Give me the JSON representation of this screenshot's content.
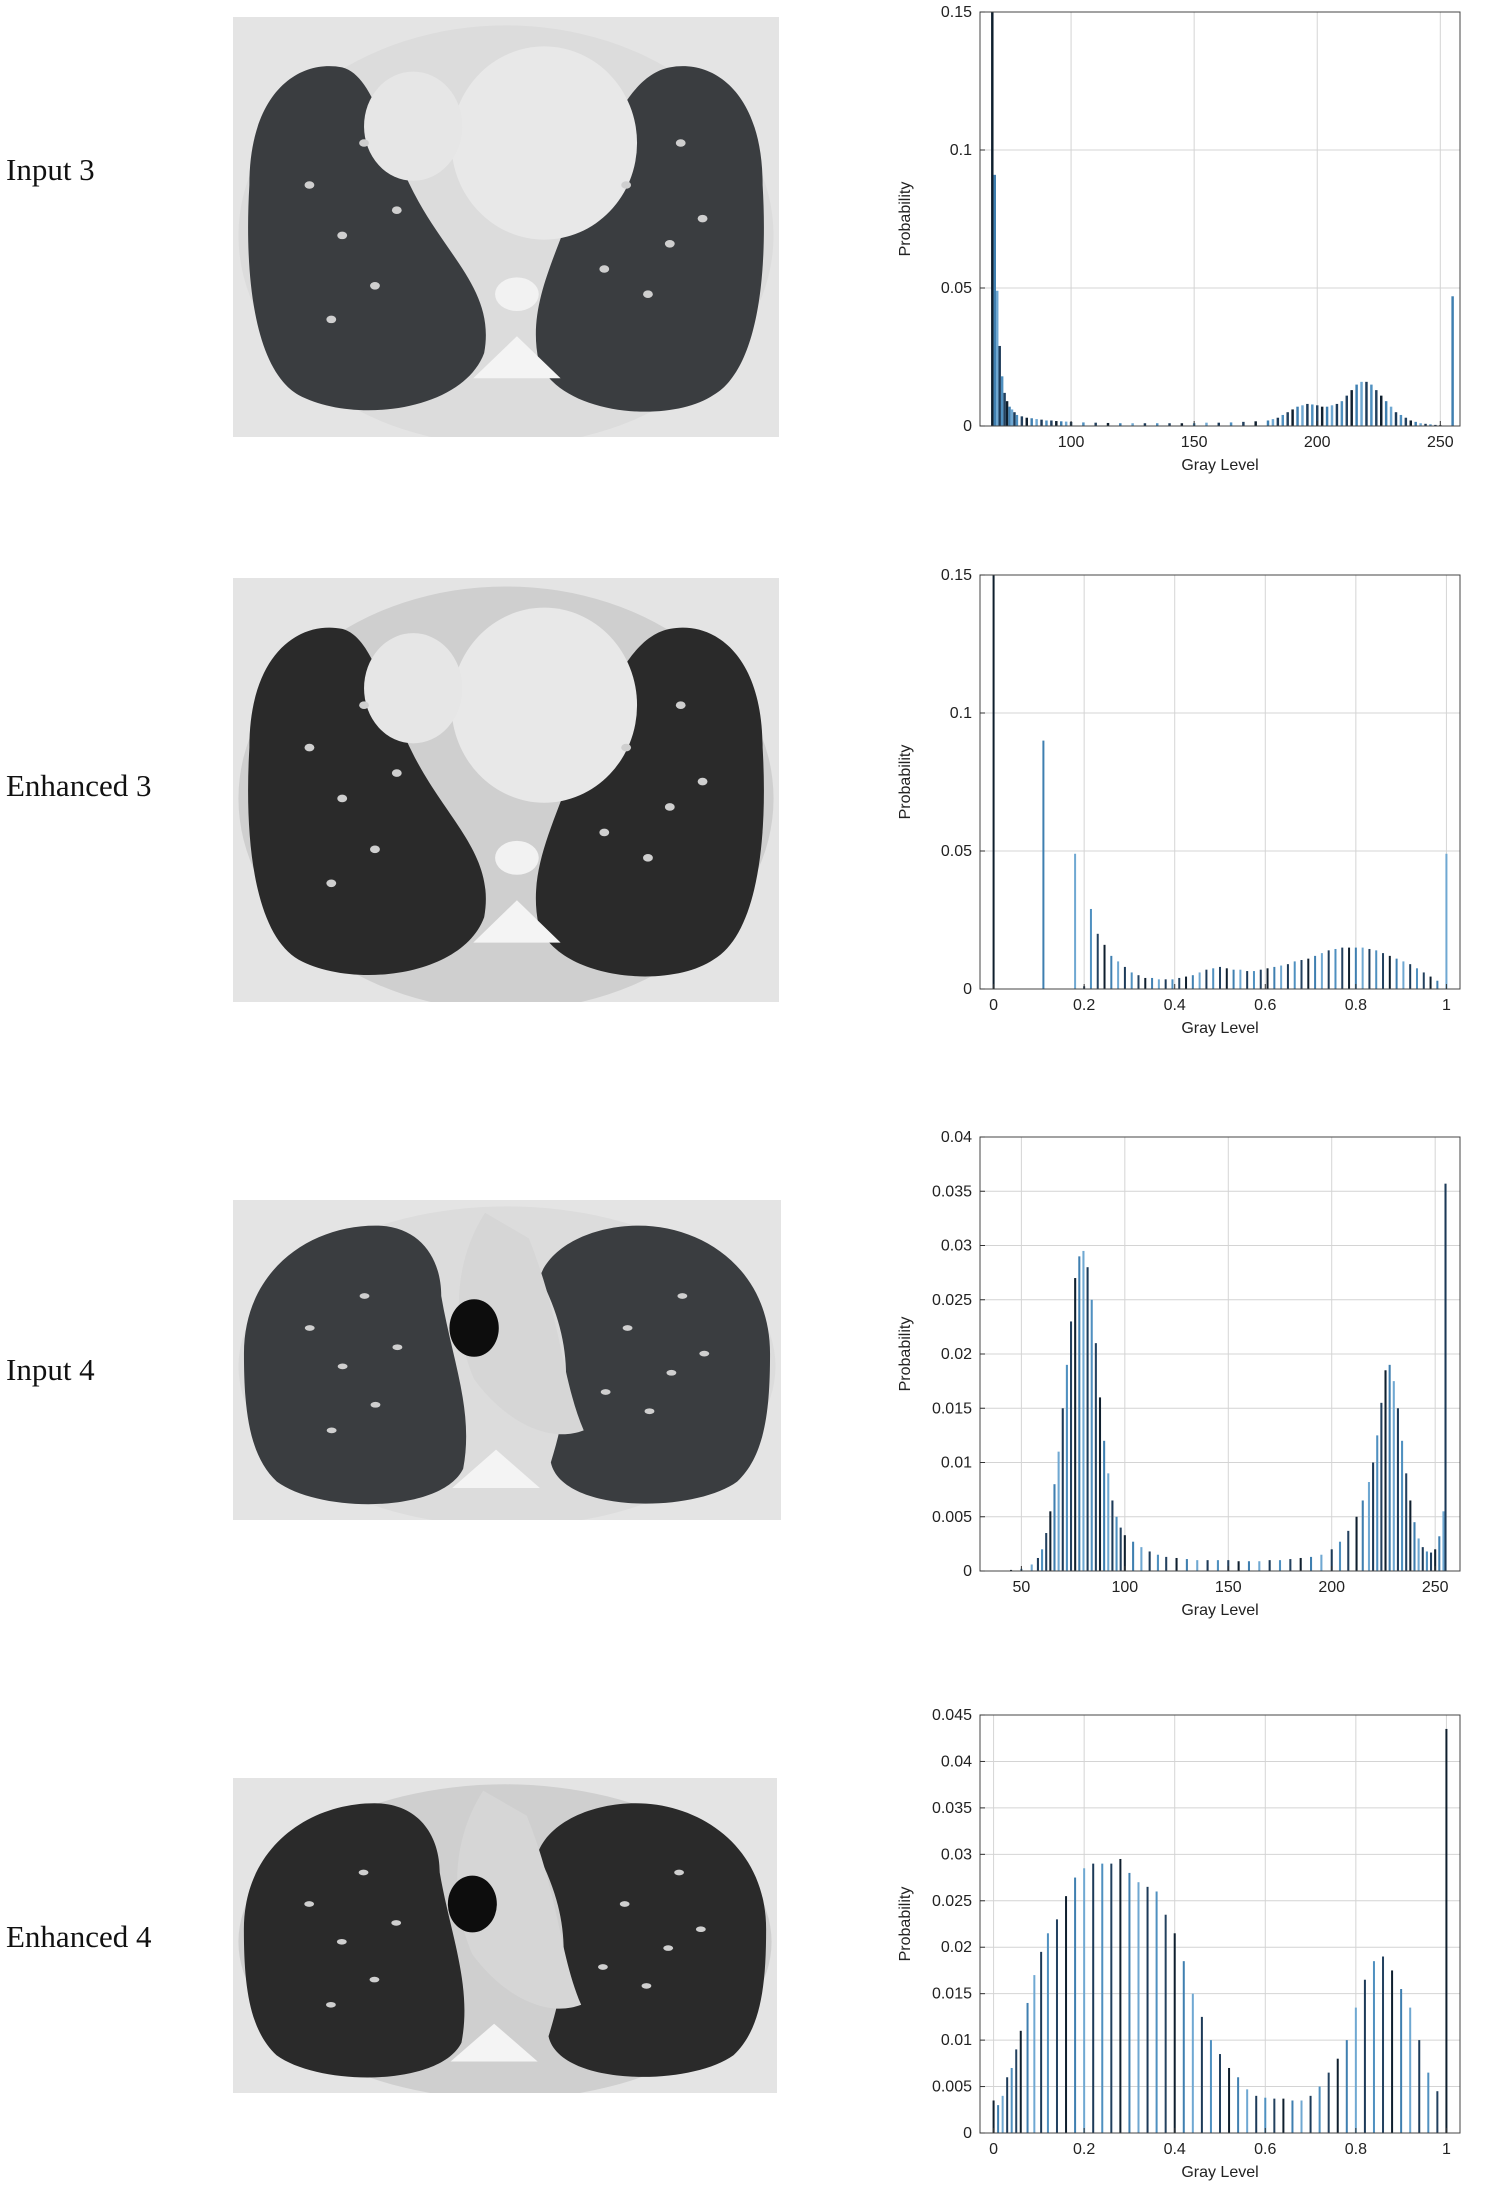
{
  "rows": [
    {
      "label": "Input 3",
      "image_kind": "input",
      "chart_data": {
        "type": "bar",
        "xlabel": "Gray Level",
        "ylabel": "Probability",
        "xlim": [
          63,
          258
        ],
        "ylim": [
          0,
          0.15
        ],
        "xticks": [
          100,
          150,
          200,
          250
        ],
        "yticks": [
          0,
          0.05,
          0.1,
          0.15
        ],
        "ytick_labels": [
          "0",
          "0.05",
          "0.1",
          "0.15"
        ],
        "grid": true,
        "bar_width": 1.0,
        "x": [
          68,
          69,
          70,
          71,
          72,
          73,
          74,
          75,
          76,
          77,
          78,
          80,
          82,
          84,
          86,
          88,
          90,
          92,
          94,
          96,
          98,
          100,
          105,
          110,
          115,
          120,
          125,
          130,
          135,
          140,
          145,
          150,
          155,
          160,
          165,
          170,
          175,
          180,
          182,
          184,
          186,
          188,
          190,
          192,
          194,
          196,
          198,
          200,
          202,
          204,
          206,
          208,
          210,
          212,
          214,
          216,
          218,
          220,
          222,
          224,
          226,
          228,
          230,
          232,
          234,
          236,
          238,
          240,
          242,
          244,
          246,
          248,
          250,
          255
        ],
        "values": [
          0.15,
          0.091,
          0.049,
          0.029,
          0.018,
          0.012,
          0.009,
          0.007,
          0.006,
          0.005,
          0.004,
          0.0035,
          0.003,
          0.0028,
          0.0025,
          0.0023,
          0.002,
          0.002,
          0.0018,
          0.0017,
          0.0016,
          0.0015,
          0.0013,
          0.0012,
          0.0011,
          0.001,
          0.001,
          0.001,
          0.001,
          0.001,
          0.001,
          0.001,
          0.0012,
          0.0012,
          0.0013,
          0.0015,
          0.0017,
          0.002,
          0.0025,
          0.003,
          0.004,
          0.005,
          0.006,
          0.007,
          0.0075,
          0.008,
          0.0078,
          0.0075,
          0.007,
          0.007,
          0.0075,
          0.008,
          0.009,
          0.011,
          0.013,
          0.015,
          0.016,
          0.016,
          0.015,
          0.013,
          0.011,
          0.009,
          0.007,
          0.005,
          0.004,
          0.003,
          0.002,
          0.0015,
          0.001,
          0.0008,
          0.0006,
          0.0004,
          0.0003,
          0.047
        ]
      }
    },
    {
      "label": "Enhanced 3",
      "image_kind": "enhanced",
      "chart_data": {
        "type": "bar",
        "xlabel": "Gray Level",
        "ylabel": "Probability",
        "xlim": [
          -0.03,
          1.03
        ],
        "ylim": [
          0,
          0.15
        ],
        "xticks": [
          0,
          0.2,
          0.4,
          0.6,
          0.8,
          1
        ],
        "xtick_labels": [
          "0",
          "0.2",
          "0.4",
          "0.6",
          "0.8",
          "1"
        ],
        "yticks": [
          0,
          0.05,
          0.1,
          0.15
        ],
        "ytick_labels": [
          "0",
          "0.05",
          "0.1",
          "0.15"
        ],
        "grid": true,
        "bar_width": 0.004,
        "x": [
          0,
          0.11,
          0.18,
          0.2,
          0.215,
          0.23,
          0.245,
          0.26,
          0.275,
          0.29,
          0.305,
          0.32,
          0.335,
          0.35,
          0.365,
          0.38,
          0.395,
          0.41,
          0.425,
          0.44,
          0.455,
          0.47,
          0.485,
          0.5,
          0.515,
          0.53,
          0.545,
          0.56,
          0.575,
          0.59,
          0.605,
          0.62,
          0.635,
          0.65,
          0.665,
          0.68,
          0.695,
          0.71,
          0.725,
          0.74,
          0.755,
          0.77,
          0.785,
          0.8,
          0.815,
          0.83,
          0.845,
          0.86,
          0.875,
          0.89,
          0.905,
          0.92,
          0.935,
          0.95,
          0.965,
          0.98,
          1
        ],
        "values": [
          0.15,
          0.09,
          0.049,
          0.001,
          0.029,
          0.02,
          0.016,
          0.012,
          0.01,
          0.008,
          0.006,
          0.005,
          0.004,
          0.004,
          0.0035,
          0.0035,
          0.0035,
          0.004,
          0.0045,
          0.005,
          0.006,
          0.007,
          0.0075,
          0.008,
          0.0075,
          0.007,
          0.007,
          0.0065,
          0.0065,
          0.007,
          0.0075,
          0.008,
          0.0085,
          0.009,
          0.01,
          0.0105,
          0.011,
          0.012,
          0.013,
          0.014,
          0.0145,
          0.015,
          0.015,
          0.015,
          0.015,
          0.0145,
          0.014,
          0.013,
          0.012,
          0.011,
          0.01,
          0.009,
          0.0075,
          0.006,
          0.0045,
          0.003,
          0.049
        ]
      }
    },
    {
      "label": "Input 4",
      "image_kind": "input",
      "chart_data": {
        "type": "bar",
        "xlabel": "Gray Level",
        "ylabel": "Probability",
        "xlim": [
          30,
          262
        ],
        "ylim": [
          0,
          0.04
        ],
        "xticks": [
          50,
          100,
          150,
          200,
          250
        ],
        "yticks": [
          0,
          0.005,
          0.01,
          0.015,
          0.02,
          0.025,
          0.03,
          0.035,
          0.04
        ],
        "ytick_labels": [
          "0",
          "0.005",
          "0.01",
          "0.015",
          "0.02",
          "0.025",
          "0.03",
          "0.035",
          "0.04"
        ],
        "grid": true,
        "bar_width": 1.0,
        "x": [
          45,
          50,
          55,
          58,
          60,
          62,
          64,
          66,
          68,
          70,
          72,
          74,
          76,
          78,
          80,
          82,
          84,
          86,
          88,
          90,
          92,
          94,
          96,
          98,
          100,
          104,
          108,
          112,
          116,
          120,
          125,
          130,
          135,
          140,
          145,
          150,
          155,
          160,
          165,
          170,
          175,
          180,
          185,
          190,
          195,
          200,
          204,
          208,
          212,
          215,
          218,
          220,
          222,
          224,
          226,
          228,
          230,
          232,
          234,
          236,
          238,
          240,
          242,
          244,
          246,
          248,
          250,
          252,
          254,
          255
        ],
        "values": [
          0.0001,
          0.0002,
          0.0006,
          0.0012,
          0.002,
          0.0035,
          0.0055,
          0.008,
          0.011,
          0.015,
          0.019,
          0.023,
          0.027,
          0.029,
          0.0295,
          0.028,
          0.025,
          0.021,
          0.016,
          0.012,
          0.009,
          0.0065,
          0.005,
          0.004,
          0.0033,
          0.0027,
          0.0022,
          0.0018,
          0.0015,
          0.0013,
          0.0012,
          0.0011,
          0.001,
          0.001,
          0.001,
          0.001,
          0.0009,
          0.0009,
          0.0009,
          0.001,
          0.001,
          0.0011,
          0.0012,
          0.0013,
          0.0015,
          0.002,
          0.0027,
          0.0037,
          0.005,
          0.0065,
          0.0082,
          0.01,
          0.0125,
          0.0155,
          0.0185,
          0.019,
          0.0175,
          0.015,
          0.012,
          0.009,
          0.0065,
          0.0045,
          0.003,
          0.0022,
          0.0018,
          0.0017,
          0.002,
          0.0032,
          0.0055,
          0.0357
        ]
      }
    },
    {
      "label": "Enhanced 4",
      "image_kind": "enhanced",
      "chart_data": {
        "type": "bar",
        "xlabel": "Gray Level",
        "ylabel": "Probability",
        "xlim": [
          -0.03,
          1.03
        ],
        "ylim": [
          0,
          0.045
        ],
        "xticks": [
          0,
          0.2,
          0.4,
          0.6,
          0.8,
          1
        ],
        "xtick_labels": [
          "0",
          "0.2",
          "0.4",
          "0.6",
          "0.8",
          "1"
        ],
        "yticks": [
          0,
          0.005,
          0.01,
          0.015,
          0.02,
          0.025,
          0.03,
          0.035,
          0.04,
          0.045
        ],
        "ytick_labels": [
          "0",
          "0.005",
          "0.01",
          "0.015",
          "0.02",
          "0.025",
          "0.03",
          "0.035",
          "0.04",
          "0.045"
        ],
        "grid": true,
        "bar_width": 0.004,
        "x": [
          0,
          0.01,
          0.02,
          0.03,
          0.04,
          0.05,
          0.06,
          0.075,
          0.09,
          0.105,
          0.12,
          0.14,
          0.16,
          0.18,
          0.2,
          0.22,
          0.24,
          0.26,
          0.28,
          0.3,
          0.32,
          0.34,
          0.36,
          0.38,
          0.4,
          0.42,
          0.44,
          0.46,
          0.48,
          0.5,
          0.52,
          0.54,
          0.56,
          0.58,
          0.6,
          0.62,
          0.64,
          0.66,
          0.68,
          0.7,
          0.72,
          0.74,
          0.76,
          0.78,
          0.8,
          0.82,
          0.84,
          0.86,
          0.88,
          0.9,
          0.92,
          0.94,
          0.96,
          0.98,
          1
        ],
        "values": [
          0.0035,
          0.003,
          0.004,
          0.006,
          0.007,
          0.009,
          0.011,
          0.014,
          0.017,
          0.0195,
          0.0215,
          0.023,
          0.0255,
          0.0275,
          0.0285,
          0.029,
          0.029,
          0.029,
          0.0295,
          0.028,
          0.027,
          0.0265,
          0.026,
          0.0235,
          0.0215,
          0.0185,
          0.015,
          0.0125,
          0.01,
          0.0085,
          0.007,
          0.006,
          0.0047,
          0.004,
          0.0038,
          0.0037,
          0.0037,
          0.0035,
          0.0035,
          0.004,
          0.005,
          0.0065,
          0.008,
          0.01,
          0.0135,
          0.0165,
          0.0185,
          0.019,
          0.0175,
          0.0155,
          0.0135,
          0.01,
          0.0065,
          0.0045,
          0.0435
        ]
      }
    }
  ]
}
